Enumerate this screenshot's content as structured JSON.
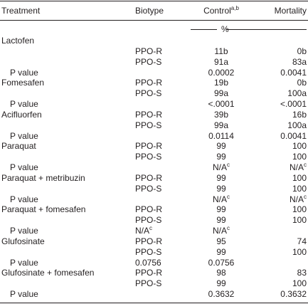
{
  "table": {
    "header": {
      "treatment": "Treatment",
      "biotype": "Biotype",
      "control": {
        "text": "Control",
        "sup": "a,b"
      },
      "mortality": "Mortality"
    },
    "unit": "%",
    "rows": [
      {
        "treatment": "Lactofen"
      },
      {
        "biotype": "PPO-R",
        "control": "11b",
        "mortality": "0b"
      },
      {
        "biotype": "PPO-S",
        "control": "91a",
        "mortality": "83a"
      },
      {
        "treatment": "P value",
        "control": "0.0002",
        "mortality": "0.0041"
      },
      {
        "treatment": "Fomesafen",
        "biotype": "PPO-R",
        "control": "19b",
        "mortality": "0b"
      },
      {
        "biotype": "PPO-S",
        "control": "99a",
        "mortality": "100a"
      },
      {
        "treatment": "P value",
        "control": "<.0001",
        "mortality": "<.0001"
      },
      {
        "treatment": "Acifluorfen",
        "biotype": "PPO-R",
        "control": "39b",
        "mortality": "16b"
      },
      {
        "biotype": "PPO-S",
        "control": "99a",
        "mortality": "100a"
      },
      {
        "treatment": "P value",
        "control": "0.0114",
        "mortality": "0.0041"
      },
      {
        "treatment": "Paraquat",
        "biotype": "PPO-R",
        "control": "99",
        "mortality": "100"
      },
      {
        "biotype": "PPO-S",
        "control": "99",
        "mortality": "100"
      },
      {
        "treatment": "P value",
        "control": {
          "text": "N/A",
          "sup": "c"
        },
        "mortality": {
          "text": "N/A",
          "sup": "c"
        }
      },
      {
        "treatment": "Paraquat + metribuzin",
        "biotype": "PPO-R",
        "control": "99",
        "mortality": "100"
      },
      {
        "biotype": "PPO-S",
        "control": "99",
        "mortality": "100"
      },
      {
        "treatment": "P value",
        "control": {
          "text": "N/A",
          "sup": "c"
        },
        "mortality": {
          "text": "N/A",
          "sup": "c"
        }
      },
      {
        "treatment": "Paraquat + fomesafen",
        "biotype": "PPO-R",
        "control": "99",
        "mortality": "100"
      },
      {
        "biotype": "PPO-S",
        "control": "99",
        "mortality": "100"
      },
      {
        "treatment": "P value",
        "biotype": {
          "text": "N/A",
          "sup": "c"
        },
        "control": {
          "text": "N/A",
          "sup": "c"
        }
      },
      {
        "treatment": "Glufosinate",
        "biotype": "PPO-R",
        "control": "95",
        "mortality": "74"
      },
      {
        "biotype": "PPO-S",
        "control": "99",
        "mortality": "100"
      },
      {
        "treatment": "P value",
        "biotype": "0.0756",
        "control": "0.0756"
      },
      {
        "treatment": "Glufosinate + fomesafen",
        "biotype": "PPO-R",
        "control": "98",
        "mortality": "83"
      },
      {
        "biotype": "PPO-S",
        "control": "99",
        "mortality": "100"
      },
      {
        "treatment": "P value",
        "control": "0.3632",
        "mortality": "0.3632"
      }
    ]
  }
}
